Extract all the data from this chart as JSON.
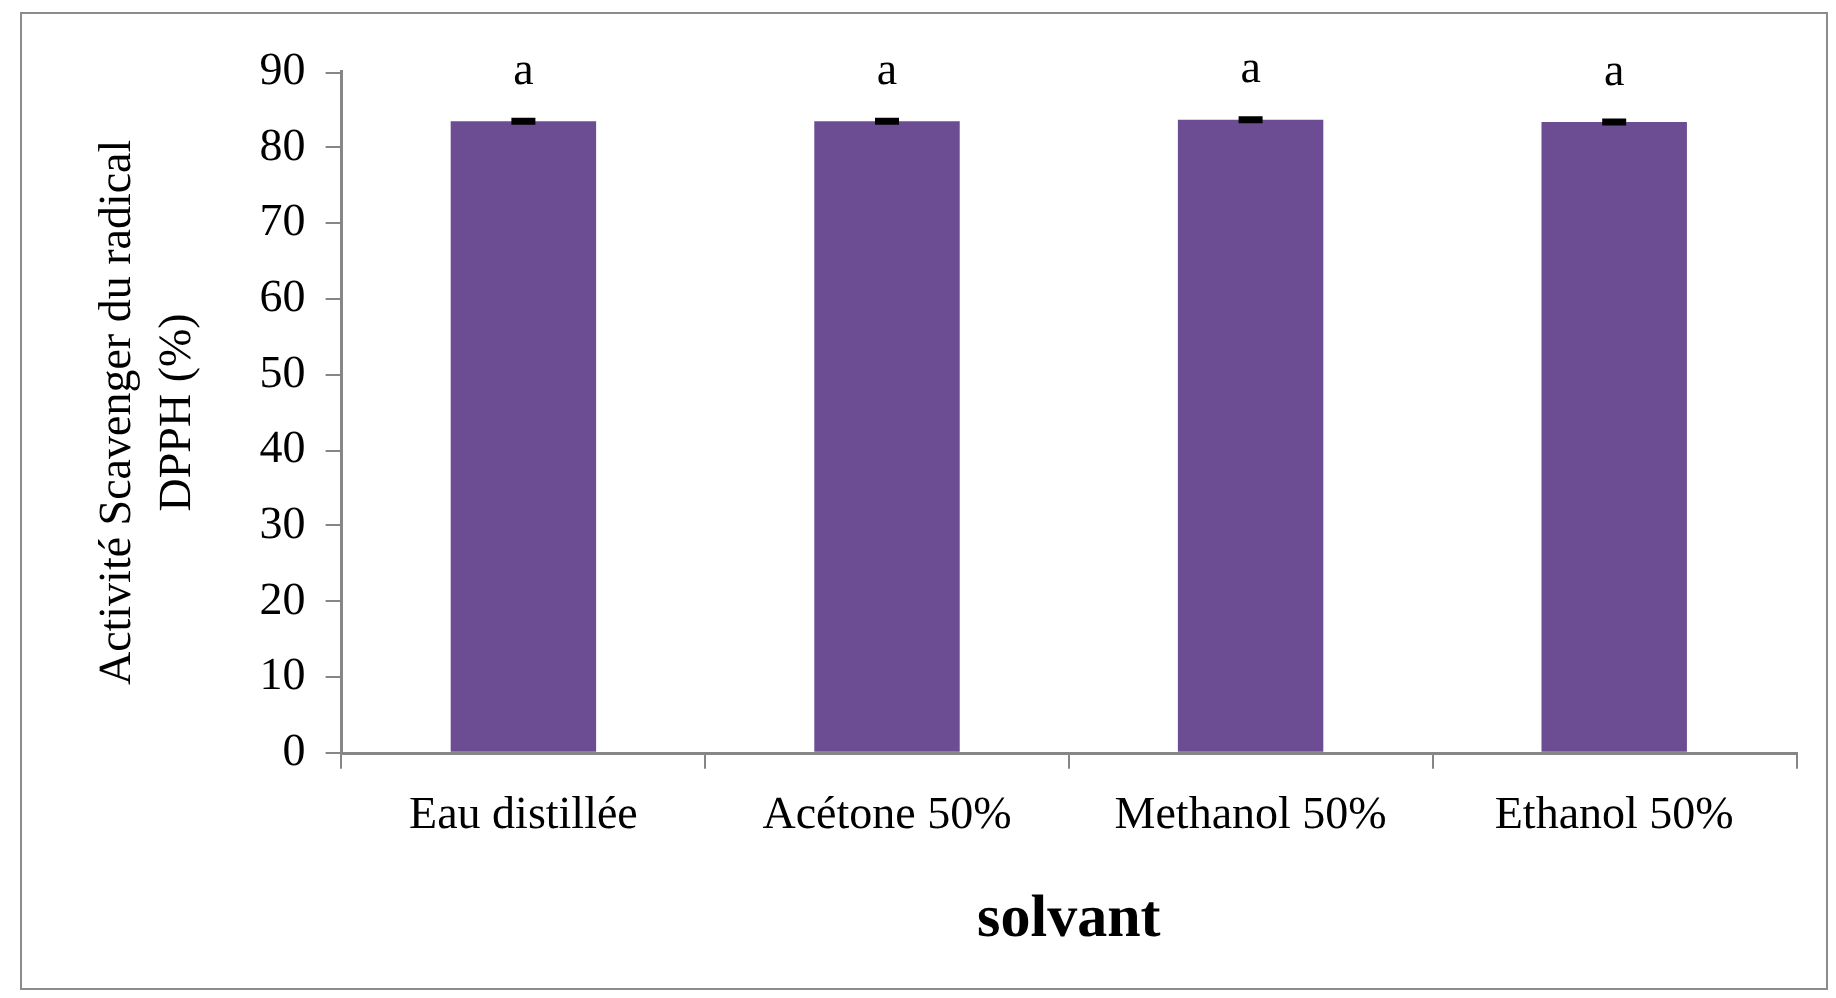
{
  "chart_data": {
    "type": "bar",
    "xlabel": "solvant",
    "ylabel": "Activité Scavenger du radical DPPH (%)",
    "categories": [
      "Eau distillée",
      "Acétone 50%",
      "Methanol 50%",
      "Ethanol 50%"
    ],
    "values": [
      83.5,
      83.5,
      83.7,
      83.4
    ],
    "errors": [
      0.2,
      0.2,
      0.2,
      0.2
    ],
    "color": "#6c4d94",
    "ylim": [
      0,
      90
    ],
    "yticks": [
      0,
      10,
      20,
      30,
      40,
      50,
      60,
      70,
      80,
      90
    ],
    "grid": false,
    "legend": false,
    "annotations": [
      "a",
      "a",
      "a",
      "a"
    ]
  }
}
